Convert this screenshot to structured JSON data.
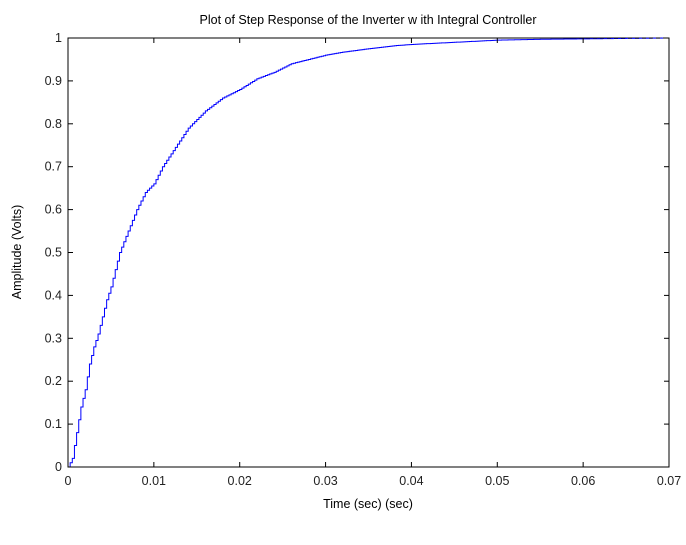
{
  "chart_data": {
    "type": "line",
    "title": "Plot of Step Response of the Inverter w ith Integral Controller",
    "xlabel": "Time (sec) (sec)",
    "ylabel": "Amplitude (Volts)",
    "xlim": [
      0,
      0.07
    ],
    "ylim": [
      0,
      1
    ],
    "xticks": [
      0,
      0.01,
      0.02,
      0.03,
      0.04,
      0.05,
      0.06,
      0.07
    ],
    "xtick_labels": [
      "0",
      "0.01",
      "0.02",
      "0.03",
      "0.04",
      "0.05",
      "0.06",
      "0.07"
    ],
    "yticks": [
      0,
      0.1,
      0.2,
      0.3,
      0.4,
      0.5,
      0.6,
      0.7,
      0.8,
      0.9,
      1
    ],
    "ytick_labels": [
      "0",
      "0.1",
      "0.2",
      "0.3",
      "0.4",
      "0.5",
      "0.6",
      "0.7",
      "0.8",
      "0.9",
      "1"
    ],
    "grid": false,
    "series": [
      {
        "color": "#0000ff",
        "style": "staircase",
        "x": [
          0,
          0.0005,
          0.001,
          0.0015,
          0.002,
          0.0025,
          0.003,
          0.0035,
          0.004,
          0.0045,
          0.005,
          0.006,
          0.007,
          0.008,
          0.009,
          0.01,
          0.011,
          0.012,
          0.013,
          0.014,
          0.015,
          0.016,
          0.018,
          0.02,
          0.022,
          0.024,
          0.026,
          0.028,
          0.03,
          0.032,
          0.035,
          0.038,
          0.04,
          0.045,
          0.05,
          0.055,
          0.06,
          0.065,
          0.07
        ],
        "y": [
          0,
          0.02,
          0.08,
          0.14,
          0.18,
          0.24,
          0.28,
          0.31,
          0.35,
          0.39,
          0.42,
          0.5,
          0.55,
          0.6,
          0.64,
          0.66,
          0.7,
          0.73,
          0.76,
          0.79,
          0.81,
          0.83,
          0.86,
          0.88,
          0.905,
          0.92,
          0.94,
          0.95,
          0.96,
          0.967,
          0.975,
          0.982,
          0.985,
          0.99,
          0.995,
          0.997,
          0.998,
          0.999,
          1.0
        ]
      },
      {
        "color": "#000000",
        "style": "dashed",
        "x": [
          0,
          0.07
        ],
        "y": [
          1,
          1
        ]
      }
    ]
  }
}
